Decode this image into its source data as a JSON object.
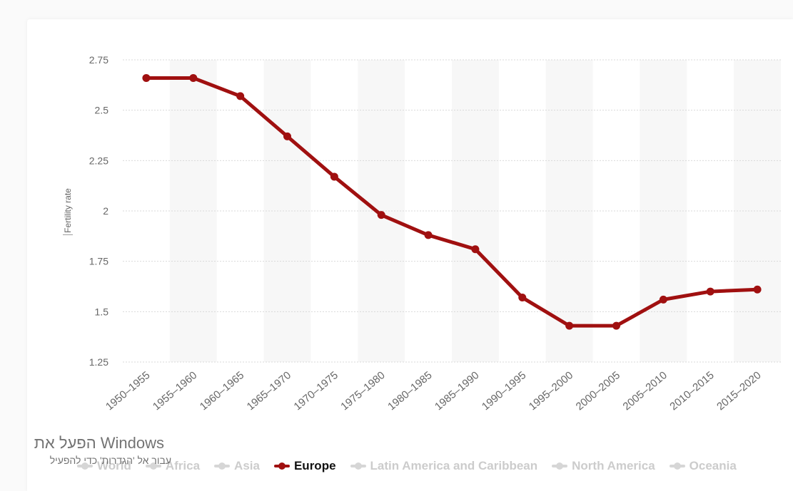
{
  "chart_data": {
    "type": "line",
    "categories": [
      "1950-1955",
      "1955-1960",
      "1960-1965",
      "1965-1970",
      "1970-1975",
      "1975-1980",
      "1980-1985",
      "1985-1990",
      "1990-1995",
      "1995-2000",
      "2000-2005",
      "2005-2010",
      "2010-2015",
      "2015-2020"
    ],
    "series": [
      {
        "name": "Europe",
        "values": [
          2.66,
          2.66,
          2.57,
          2.37,
          2.17,
          1.98,
          1.88,
          1.81,
          1.57,
          1.43,
          1.43,
          1.56,
          1.6,
          1.61
        ]
      }
    ],
    "ylabel": "Fertility rate",
    "xlabel": "",
    "ylim": [
      1.25,
      2.75
    ],
    "yticks": [
      1.25,
      1.5,
      1.75,
      2,
      2.25,
      2.5,
      2.75
    ],
    "ytick_labels": [
      "1.25",
      "1.5",
      "1.75",
      "2",
      "2.25",
      "2.5",
      "2.75"
    ],
    "grid": true,
    "legend_position": "bottom",
    "colors": {
      "line": "#a01010",
      "grid": "#d9d9d9",
      "band": "#f7f7f7",
      "legend_inactive": "#cccccc"
    }
  },
  "legend": [
    {
      "label": "World",
      "active": false
    },
    {
      "label": "Africa",
      "active": false
    },
    {
      "label": "Asia",
      "active": false
    },
    {
      "label": "Europe",
      "active": true
    },
    {
      "label": "Latin America and Caribbean",
      "active": false
    },
    {
      "label": "North America",
      "active": false
    },
    {
      "label": "Oceania",
      "active": false
    }
  ],
  "watermark": {
    "title": "הפעל את Windows",
    "subtitle": "עבור אל 'הגדרות' כדי להפעיל"
  }
}
